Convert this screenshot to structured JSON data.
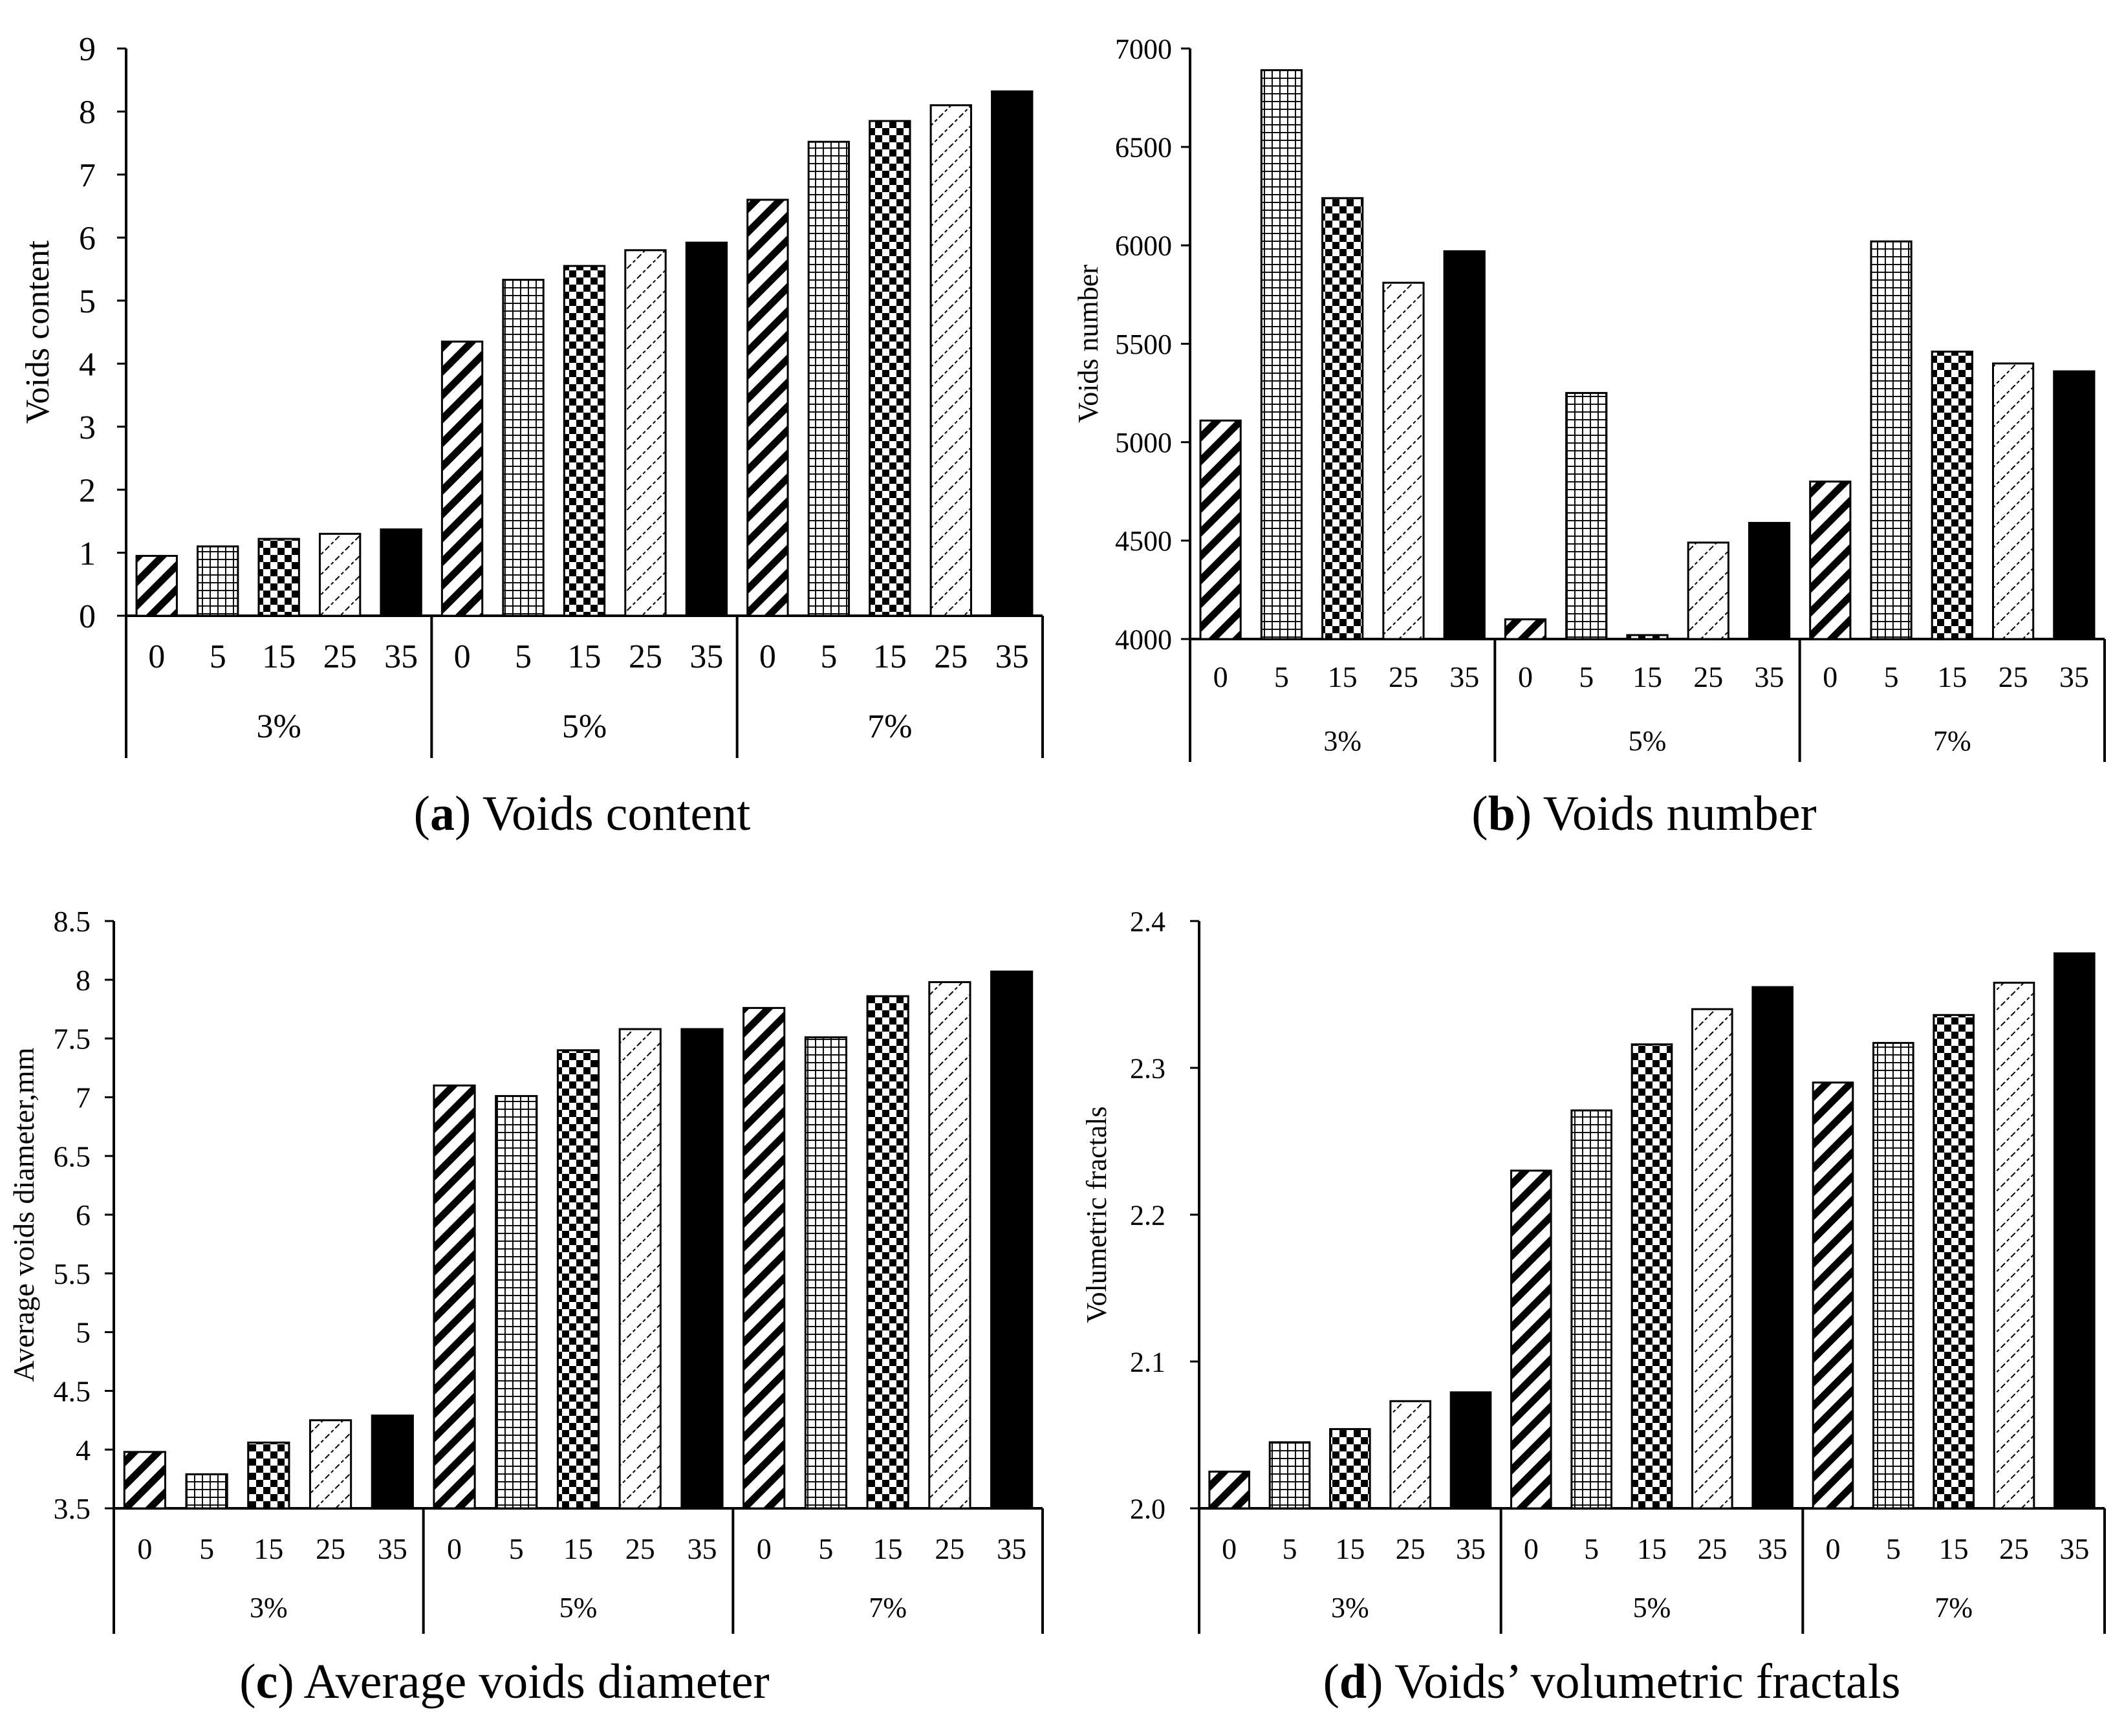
{
  "chart_data": [
    {
      "type": "bar",
      "panel_letter": "a",
      "title": "Voids content",
      "ylabel": "Voids content",
      "xlabel": "",
      "ylim": [
        0,
        9
      ],
      "yticks": [
        0,
        1,
        2,
        3,
        4,
        5,
        6,
        7,
        8,
        9
      ],
      "ytick_labels": [
        "0",
        "1",
        "2",
        "3",
        "4",
        "5",
        "6",
        "7",
        "8",
        "9"
      ],
      "groups": [
        "3%",
        "5%",
        "7%"
      ],
      "categories": [
        "0",
        "5",
        "15",
        "25",
        "35"
      ],
      "series": [
        {
          "group": "3%",
          "values": [
            0.95,
            1.1,
            1.22,
            1.3,
            1.37
          ]
        },
        {
          "group": "5%",
          "values": [
            4.35,
            5.33,
            5.55,
            5.8,
            5.92
          ]
        },
        {
          "group": "7%",
          "values": [
            6.6,
            7.52,
            7.85,
            8.1,
            8.32
          ]
        }
      ],
      "grid": false
    },
    {
      "type": "bar",
      "panel_letter": "b",
      "title": "Voids number",
      "ylabel": "Voids number",
      "xlabel": "",
      "ylim": [
        4000,
        7000
      ],
      "yticks": [
        4000,
        4500,
        5000,
        5500,
        6000,
        6500,
        7000
      ],
      "ytick_labels": [
        "4000",
        "4500",
        "5000",
        "5500",
        "6000",
        "6500",
        "7000"
      ],
      "groups": [
        "3%",
        "5%",
        "7%"
      ],
      "categories": [
        "0",
        "5",
        "15",
        "25",
        "35"
      ],
      "series": [
        {
          "group": "3%",
          "values": [
            5110,
            6890,
            6240,
            5810,
            5970
          ]
        },
        {
          "group": "5%",
          "values": [
            4100,
            5250,
            4020,
            4490,
            4590
          ]
        },
        {
          "group": "7%",
          "values": [
            4800,
            6020,
            5460,
            5400,
            5360
          ]
        }
      ],
      "grid": false
    },
    {
      "type": "bar",
      "panel_letter": "c",
      "title": "Average voids diameter",
      "ylabel": "Average voids diameter,mm",
      "xlabel": "",
      "ylim": [
        3.5,
        8.5
      ],
      "yticks": [
        3.5,
        4,
        4.5,
        5,
        5.5,
        6,
        6.5,
        7,
        7.5,
        8,
        8.5
      ],
      "ytick_labels": [
        "3.5",
        "4",
        "4.5",
        "5",
        "5.5",
        "6",
        "6.5",
        "7",
        "7.5",
        "8",
        "8.5"
      ],
      "groups": [
        "3%",
        "5%",
        "7%"
      ],
      "categories": [
        "0",
        "5",
        "15",
        "25",
        "35"
      ],
      "series": [
        {
          "group": "3%",
          "values": [
            3.98,
            3.79,
            4.06,
            4.25,
            4.29
          ]
        },
        {
          "group": "5%",
          "values": [
            7.1,
            7.01,
            7.4,
            7.58,
            7.58
          ]
        },
        {
          "group": "7%",
          "values": [
            7.76,
            7.51,
            7.86,
            7.98,
            8.07
          ]
        }
      ],
      "grid": false
    },
    {
      "type": "bar",
      "panel_letter": "d",
      "title": "Voids’ volumetric fractals",
      "ylabel": "Volumetric fractals",
      "xlabel": "",
      "ylim": [
        2.0,
        2.4
      ],
      "yticks": [
        2.0,
        2.1,
        2.2,
        2.3,
        2.4
      ],
      "ytick_labels": [
        "2.0",
        "2.1",
        "2.2",
        "2.3",
        "2.4"
      ],
      "groups": [
        "3%",
        "5%",
        "7%"
      ],
      "categories": [
        "0",
        "5",
        "15",
        "25",
        "35"
      ],
      "series": [
        {
          "group": "3%",
          "values": [
            2.025,
            2.045,
            2.054,
            2.073,
            2.079
          ]
        },
        {
          "group": "5%",
          "values": [
            2.23,
            2.271,
            2.316,
            2.34,
            2.355
          ]
        },
        {
          "group": "7%",
          "values": [
            2.29,
            2.317,
            2.336,
            2.358,
            2.378
          ]
        }
      ],
      "grid": false
    }
  ],
  "patterns": [
    "diagonal-stripes",
    "fine-grid",
    "checker",
    "dotted-diagonal",
    "solid-black"
  ],
  "colors": {
    "ink": "#000000",
    "background": "#ffffff"
  }
}
